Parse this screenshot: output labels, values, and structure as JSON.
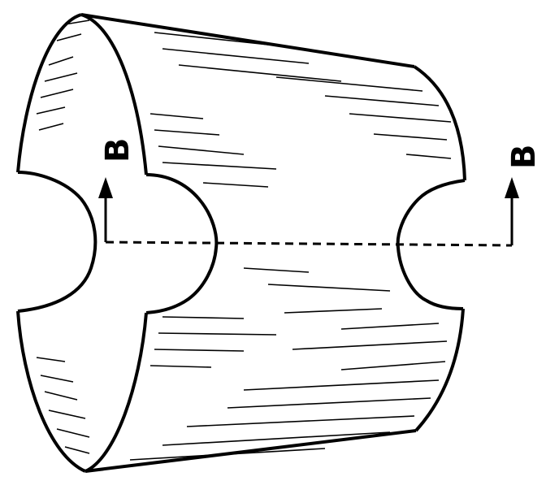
{
  "figure": {
    "description_type": "patent-drawing",
    "section_marker": {
      "left_label": "B",
      "right_label": "B"
    },
    "colors": {
      "line": "#000000",
      "background": "#ffffff"
    }
  }
}
